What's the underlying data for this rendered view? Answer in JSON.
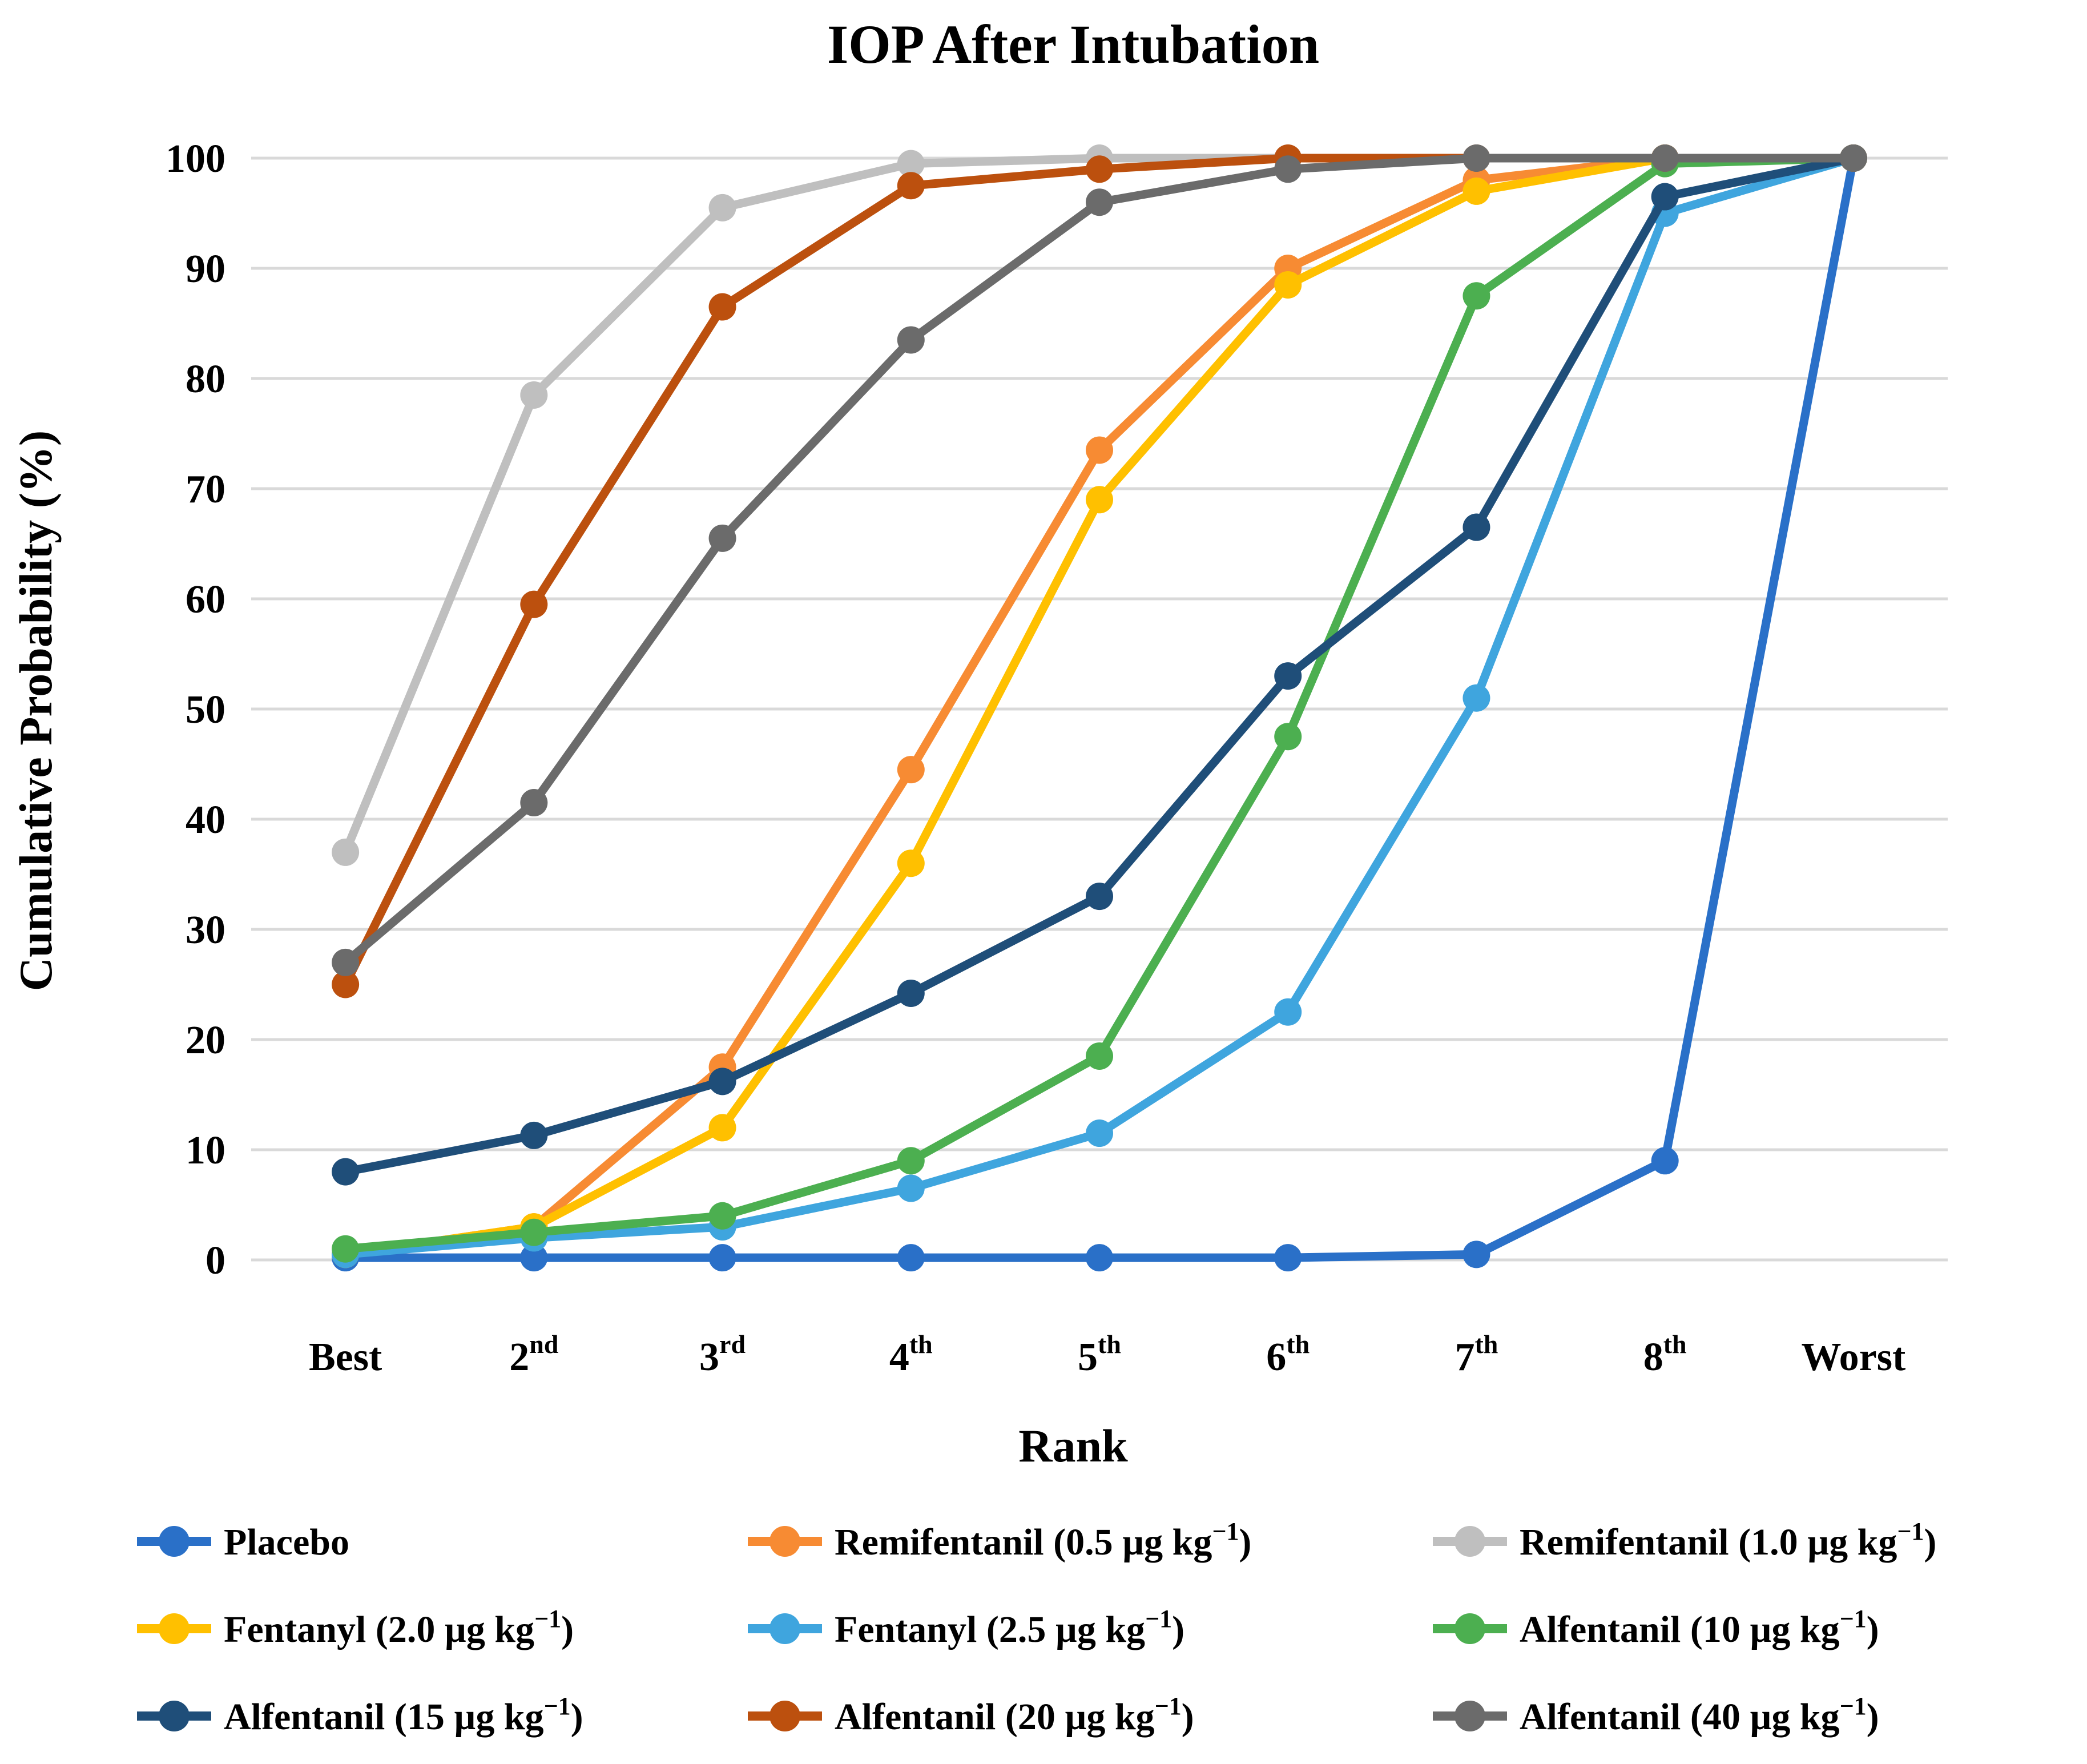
{
  "chart_data": {
    "type": "line",
    "title": "IOP After Intubation",
    "xlabel": "Rank",
    "ylabel": "Cumulative Probability (%)",
    "ylim": [
      0,
      100
    ],
    "yticks": [
      0,
      10,
      20,
      30,
      40,
      50,
      60,
      70,
      80,
      90,
      100
    ],
    "grid": true,
    "gridline_color": "#D9D9D9",
    "legend_position": "bottom",
    "categories": [
      "Best",
      "2nd",
      "3rd",
      "4th",
      "5th",
      "6th",
      "7th",
      "8th",
      "Worst"
    ],
    "series": [
      {
        "name": "Placebo",
        "color": "#2A70C8",
        "values": [
          0.2,
          0.2,
          0.2,
          0.2,
          0.2,
          0.2,
          0.5,
          9,
          100
        ]
      },
      {
        "name": "Remifentanil (0.5 µg kg⁻¹)",
        "color": "#F78B33",
        "values": [
          0.5,
          3,
          17.5,
          44.5,
          73.5,
          90,
          98,
          100,
          100
        ]
      },
      {
        "name": "Remifentanil (1.0 µg kg⁻¹)",
        "color": "#BFBFBF",
        "values": [
          37,
          78.5,
          95.5,
          99.5,
          100,
          100,
          100,
          100,
          100
        ]
      },
      {
        "name": "Fentanyl (2.0 µg kg⁻¹)",
        "color": "#FFC000",
        "values": [
          0.5,
          3,
          12,
          36,
          69,
          88.5,
          97,
          100,
          100
        ]
      },
      {
        "name": "Fentanyl (2.5 µg kg⁻¹)",
        "color": "#3FA5DE",
        "values": [
          0.5,
          2,
          3,
          6.5,
          11.5,
          22.5,
          51,
          95,
          100
        ]
      },
      {
        "name": "Alfentanil (10 µg kg⁻¹)",
        "color": "#4CAF50",
        "values": [
          1,
          2.5,
          4,
          9,
          18.5,
          47.5,
          87.5,
          99.5,
          100
        ]
      },
      {
        "name": "Alfentanil (15 µg kg⁻¹)",
        "color": "#1F4E79",
        "values": [
          8,
          11.3,
          16.2,
          24.2,
          33,
          53,
          66.5,
          96.5,
          100
        ]
      },
      {
        "name": "Alfentanil (20 µg kg⁻¹)",
        "color": "#BC500E",
        "values": [
          25,
          59.5,
          86.5,
          97.5,
          99,
          100,
          100,
          100,
          100
        ]
      },
      {
        "name": "Alfentanil (40 µg kg⁻¹)",
        "color": "#6B6B6B",
        "values": [
          27,
          41.5,
          65.5,
          83.5,
          96,
          99,
          100,
          100,
          100
        ]
      }
    ]
  }
}
